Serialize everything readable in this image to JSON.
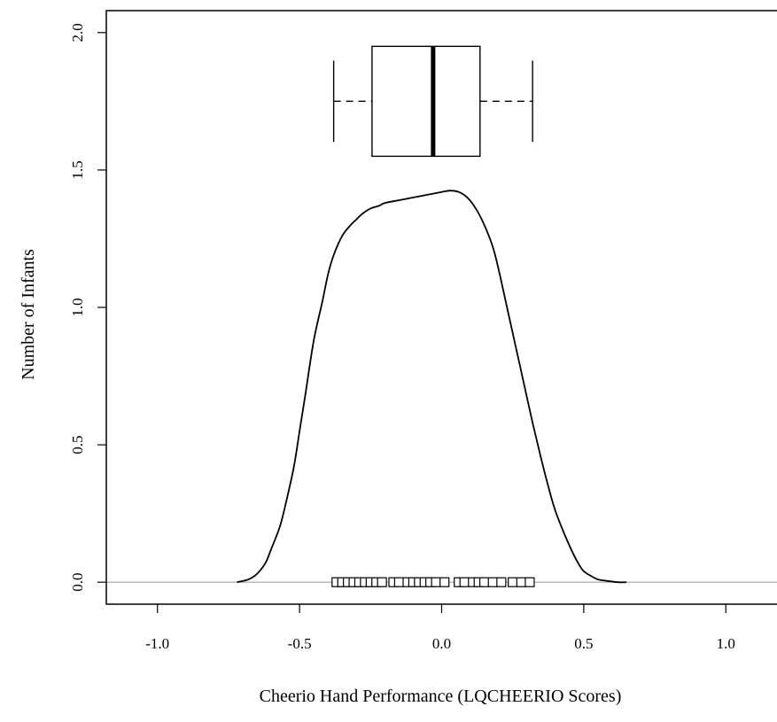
{
  "chart_data": {
    "type": "density",
    "title": "",
    "xlabel": "Cheerio Hand Performance (LQCHEERIO Scores)",
    "ylabel": "Number of Infants",
    "xlim": [
      -1.18,
      1.18
    ],
    "ylim": [
      -0.08,
      2.08
    ],
    "x_ticks": [
      -1.0,
      -0.5,
      0.0,
      0.5,
      1.0
    ],
    "x_tick_labels": [
      "-1.0",
      "-0.5",
      "0.0",
      "0.5",
      "1.0"
    ],
    "y_ticks": [
      0.0,
      0.5,
      1.0,
      1.5,
      2.0
    ],
    "y_tick_labels": [
      "0.0",
      "0.5",
      "1.0",
      "1.5",
      "2.0"
    ],
    "grid": false,
    "reference_line_y": 0,
    "density_curve": {
      "x": [
        -0.72,
        -0.68,
        -0.65,
        -0.62,
        -0.6,
        -0.57,
        -0.55,
        -0.52,
        -0.5,
        -0.48,
        -0.45,
        -0.42,
        -0.4,
        -0.38,
        -0.35,
        -0.32,
        -0.3,
        -0.28,
        -0.25,
        -0.22,
        -0.2,
        -0.15,
        -0.1,
        -0.05,
        0.0,
        0.03,
        0.06,
        0.09,
        0.12,
        0.15,
        0.18,
        0.2,
        0.23,
        0.26,
        0.29,
        0.32,
        0.35,
        0.38,
        0.4,
        0.43,
        0.46,
        0.48,
        0.5,
        0.53,
        0.55,
        0.58,
        0.62,
        0.65
      ],
      "y": [
        0.0,
        0.01,
        0.03,
        0.07,
        0.12,
        0.2,
        0.28,
        0.42,
        0.55,
        0.68,
        0.88,
        1.02,
        1.12,
        1.19,
        1.26,
        1.3,
        1.32,
        1.34,
        1.36,
        1.37,
        1.38,
        1.39,
        1.4,
        1.41,
        1.42,
        1.425,
        1.42,
        1.4,
        1.36,
        1.3,
        1.22,
        1.14,
        1.0,
        0.86,
        0.72,
        0.58,
        0.45,
        0.33,
        0.26,
        0.18,
        0.11,
        0.07,
        0.04,
        0.02,
        0.01,
        0.005,
        0.0,
        0.0
      ]
    },
    "rug_points": [
      -0.37,
      -0.35,
      -0.33,
      -0.31,
      -0.29,
      -0.27,
      -0.25,
      -0.23,
      -0.21,
      -0.17,
      -0.15,
      -0.12,
      -0.1,
      -0.08,
      -0.06,
      -0.04,
      -0.02,
      0.01,
      0.06,
      0.08,
      0.11,
      0.13,
      0.15,
      0.18,
      0.21,
      0.25,
      0.28,
      0.31
    ],
    "boxplot": {
      "min": -0.38,
      "q1": -0.245,
      "median": -0.03,
      "q3": 0.135,
      "max": 0.32,
      "y_center": 1.75,
      "half_height": 0.2
    }
  }
}
